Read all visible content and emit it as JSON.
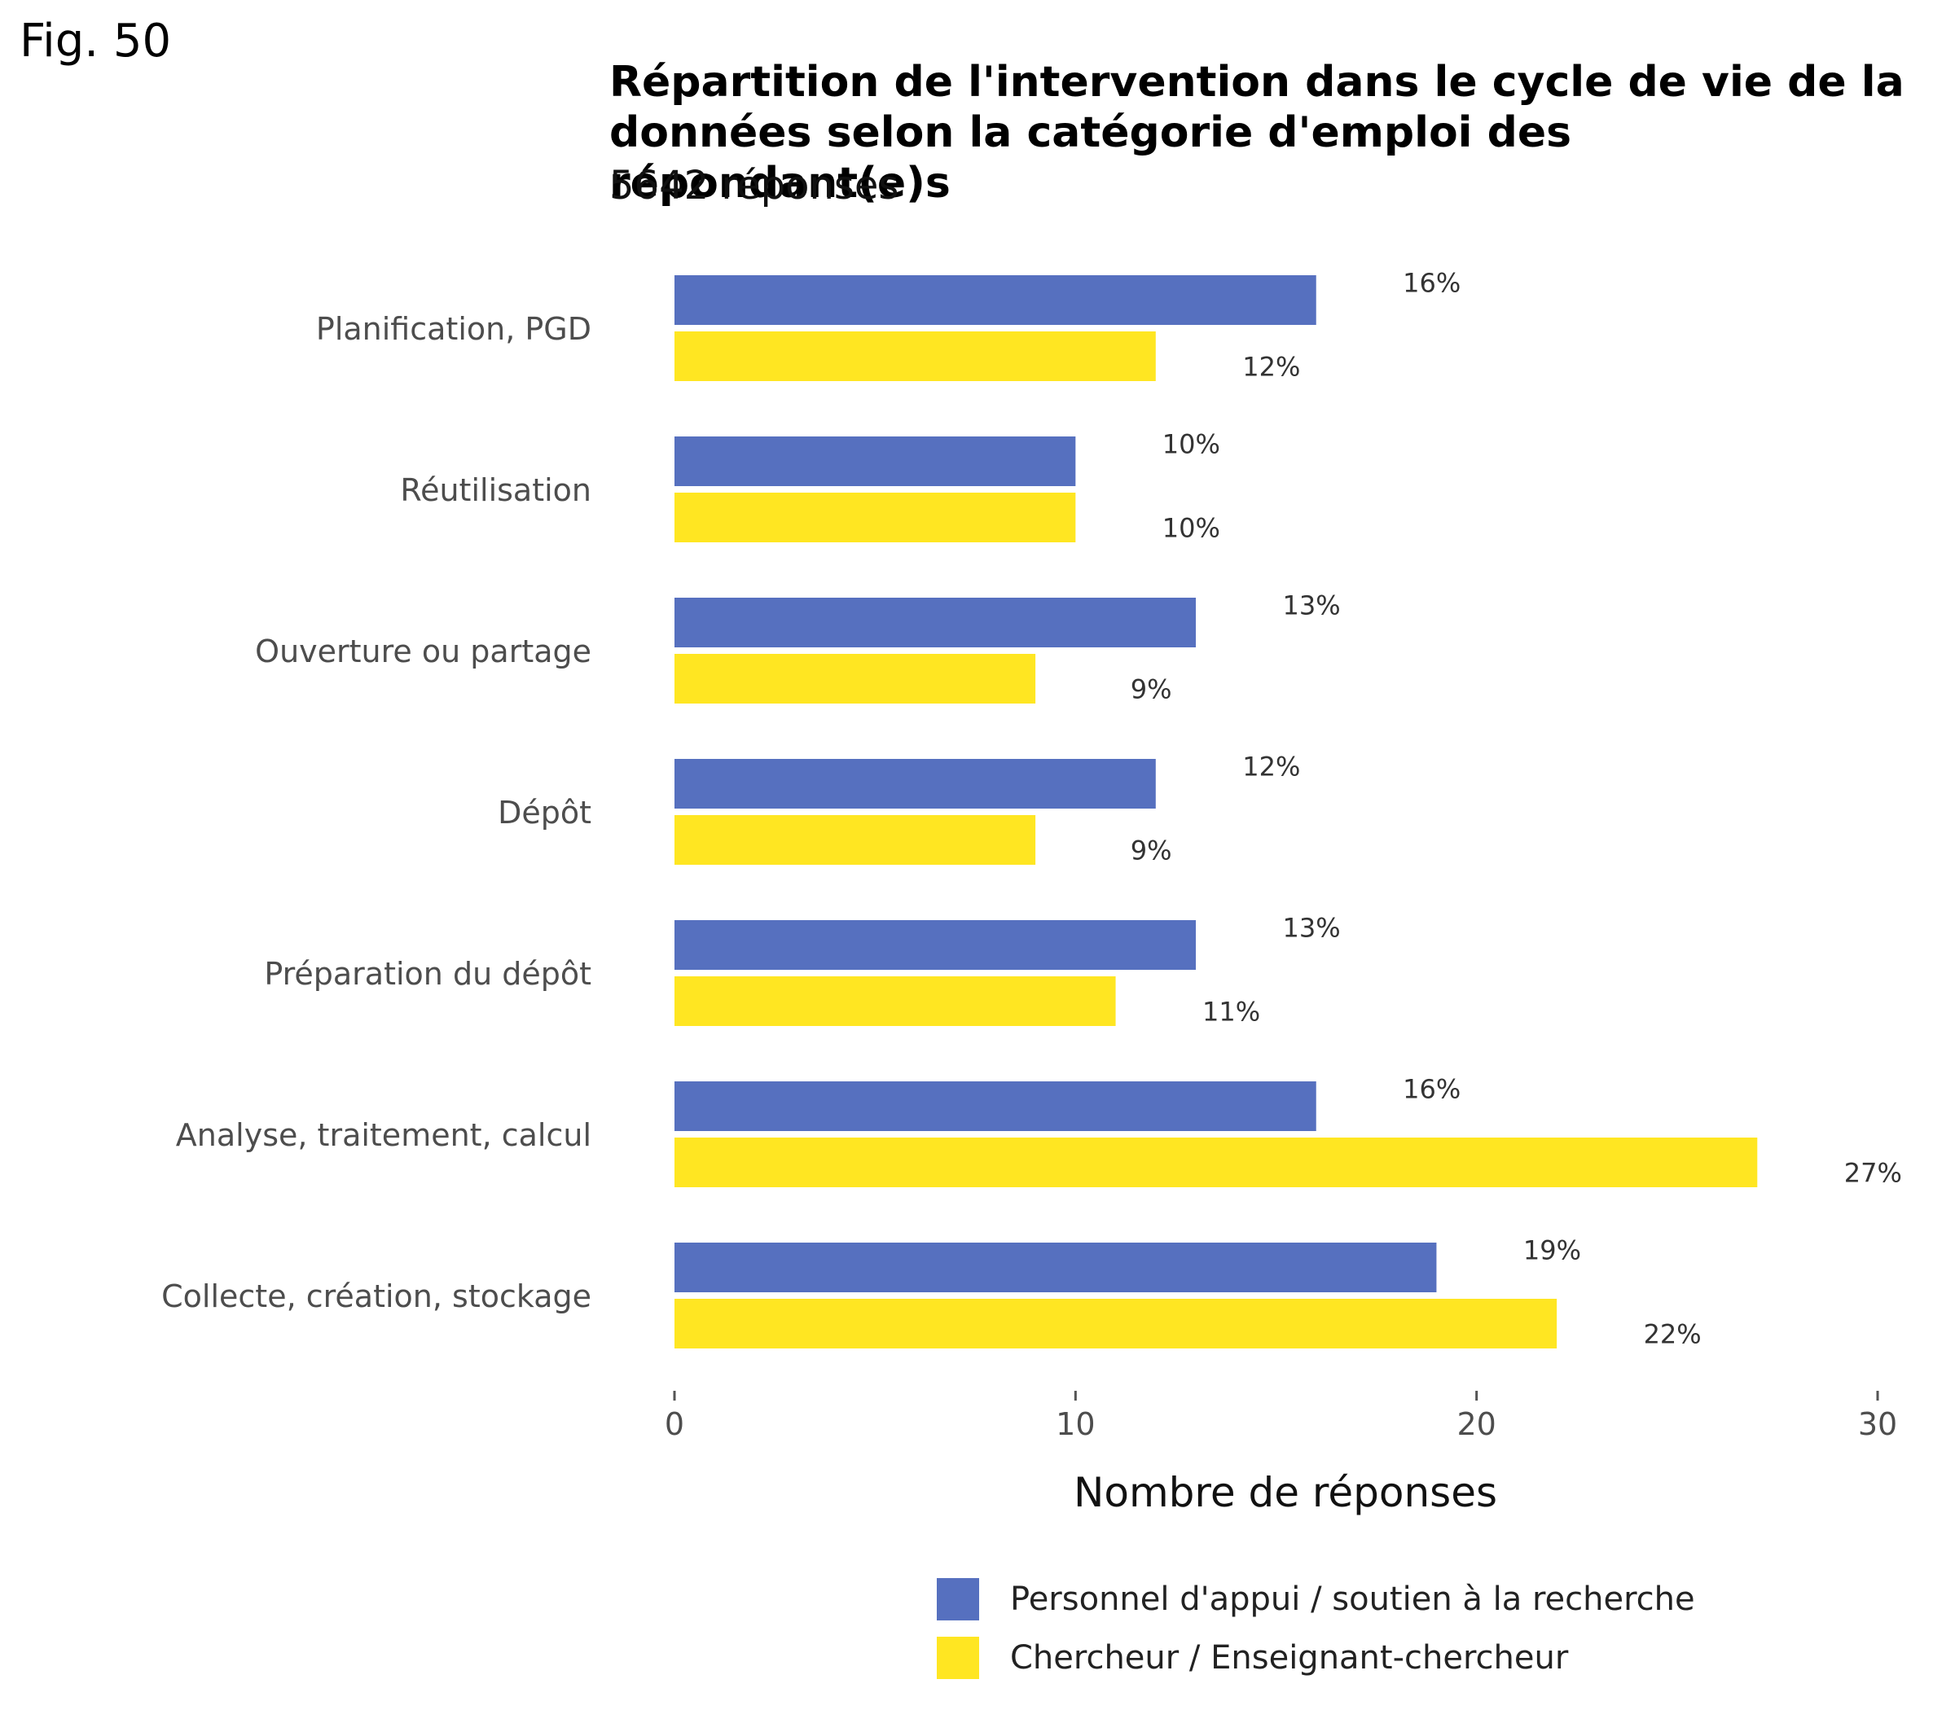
{
  "figure_label": "Fig. 50",
  "chart_data": {
    "type": "bar",
    "orientation": "horizontal",
    "title": "Répartition de l'intervention dans le cycle de vie de la données selon la catégorie d'emploi des répondant(e)s",
    "subtitle": "5642 réponses",
    "xlabel": "Nombre de réponses",
    "ylabel": "",
    "xlim": [
      0,
      30
    ],
    "xticks": [
      0,
      10,
      20,
      30
    ],
    "grid": false,
    "legend_position": "bottom",
    "categories": [
      "Planification, PGD",
      "Réutilisation",
      "Ouverture ou partage",
      "Dépôt",
      "Préparation du dépôt",
      "Analyse, traitement, calcul",
      "Collecte, création, stockage"
    ],
    "series": [
      {
        "name": "Personnel d'appui / soutien à la recherche",
        "color": "#5670bf",
        "values": [
          16,
          10,
          13,
          12,
          13,
          16,
          19
        ],
        "labels": [
          "16%",
          "10%",
          "13%",
          "12%",
          "13%",
          "16%",
          "19%"
        ]
      },
      {
        "name": "Chercheur / Enseignant-chercheur",
        "color": "#ffe622",
        "values": [
          12,
          10,
          9,
          9,
          11,
          27,
          22
        ],
        "labels": [
          "12%",
          "10%",
          "9%",
          "9%",
          "11%",
          "27%",
          "22%"
        ]
      }
    ]
  }
}
